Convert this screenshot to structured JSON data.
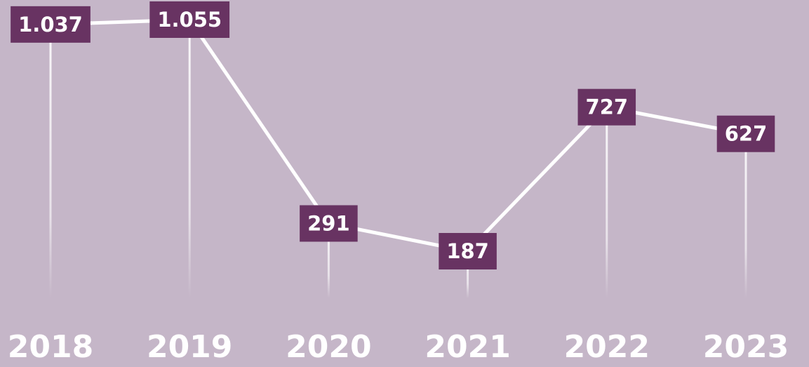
{
  "chart_data": {
    "type": "line",
    "categories": [
      "2018",
      "2019",
      "2020",
      "2021",
      "2022",
      "2023"
    ],
    "series": [
      {
        "color": "#ffffff",
        "values": [
          1037,
          1055,
          291,
          187,
          727,
          627
        ],
        "value_labels": [
          "1.037",
          "1.055",
          "291",
          "187",
          "727",
          "627"
        ]
      }
    ],
    "label_color": "#683362",
    "background": "#c5b6c8"
  }
}
